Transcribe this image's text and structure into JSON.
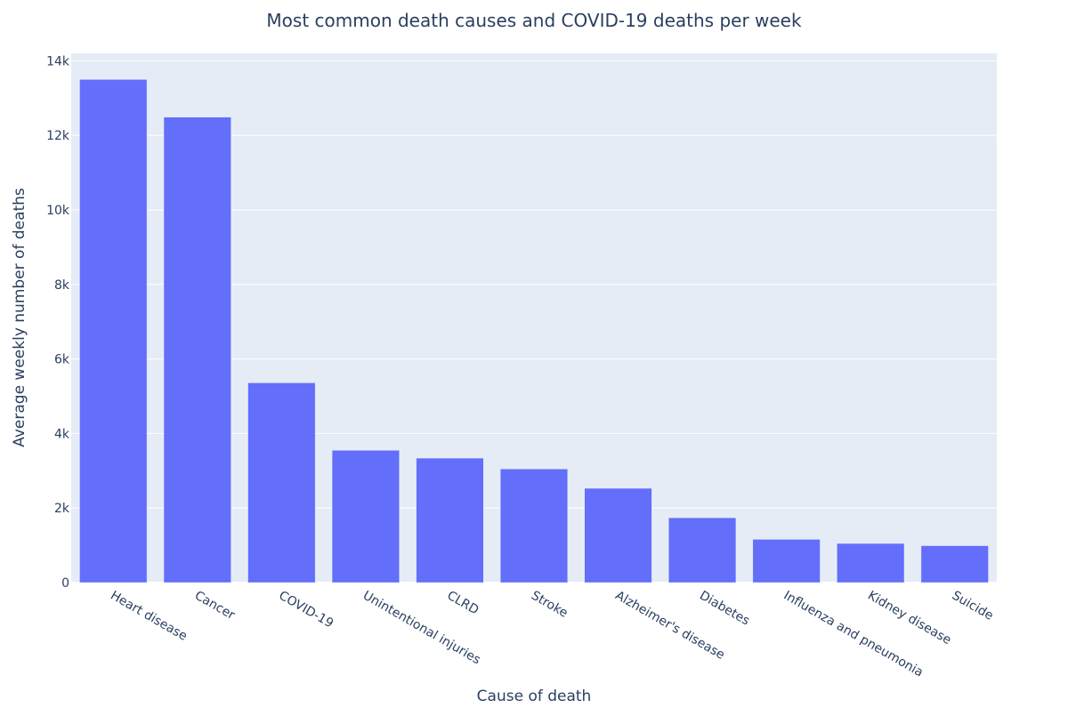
{
  "chart_data": {
    "type": "bar",
    "title": "Most common death causes and COVID-19 deaths per week",
    "xlabel": "Cause of death",
    "ylabel": "Average weekly number of deaths",
    "categories": [
      "Heart disease",
      "Cancer",
      "COVID-19",
      "Unintentional injuries",
      "CLRD",
      "Stroke",
      "Alzheimer's disease",
      "Diabetes",
      "Influenza and pneumonia",
      "Kidney disease",
      "Suicide"
    ],
    "values": [
      13500,
      12490,
      5360,
      3550,
      3340,
      3050,
      2530,
      1740,
      1160,
      1050,
      990
    ],
    "ylim": [
      0,
      14200
    ],
    "yticks": [
      0,
      2000,
      4000,
      6000,
      8000,
      10000,
      12000,
      14000
    ],
    "ytick_labels": [
      "0",
      "2k",
      "4k",
      "6k",
      "8k",
      "10k",
      "12k",
      "14k"
    ],
    "grid": true,
    "legend": "none",
    "colors": {
      "bar": "#636efa",
      "plot_background": "#e5ecf6",
      "text": "#2a3f5f"
    }
  }
}
